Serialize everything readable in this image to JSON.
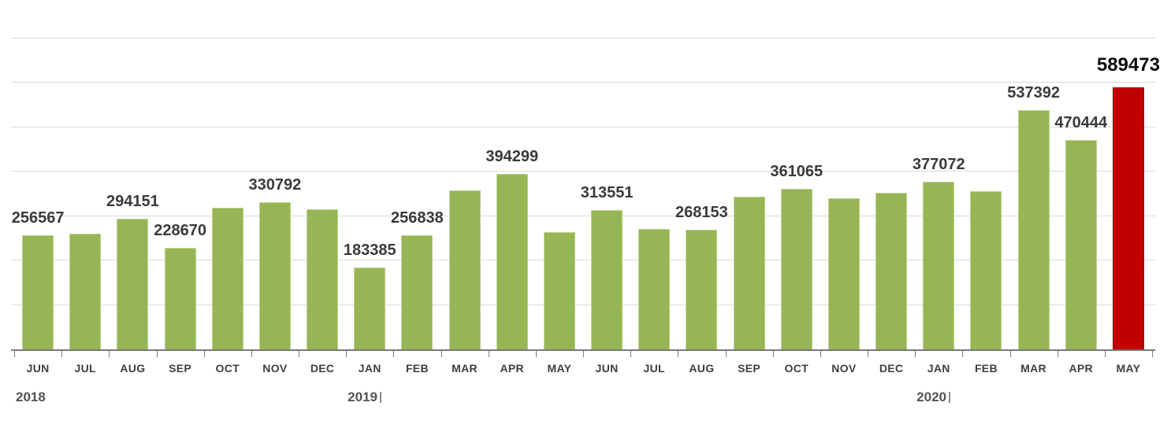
{
  "chart_data": {
    "type": "bar",
    "title": "",
    "xlabel": "",
    "ylabel": "",
    "ylim": [
      0,
      700000
    ],
    "grid_step": 100000,
    "grid": true,
    "legend": false,
    "colors": {
      "bar_green": "#96b655",
      "bar_green_border": "#bdd18f",
      "bar_red": "#c00000",
      "bar_red_border": "#8e0b0b",
      "gridline": "#d9d9d9",
      "axis": "#7a7a7a",
      "value_label_text": "#3a3a3a",
      "highlight_label_text": "#0d0d0d",
      "month_text": "#3f3f3f",
      "year_text": "#545454"
    },
    "bars": [
      {
        "month": "JUN",
        "value": 256567,
        "label": "256567",
        "highlight": false
      },
      {
        "month": "JUL",
        "value": 260000,
        "label": "",
        "highlight": false
      },
      {
        "month": "AUG",
        "value": 294151,
        "label": "294151",
        "highlight": false
      },
      {
        "month": "SEP",
        "value": 228670,
        "label": "228670",
        "highlight": false
      },
      {
        "month": "OCT",
        "value": 318000,
        "label": "",
        "highlight": false
      },
      {
        "month": "NOV",
        "value": 330792,
        "label": "330792",
        "highlight": false
      },
      {
        "month": "DEC",
        "value": 315000,
        "label": "",
        "highlight": false
      },
      {
        "month": "JAN",
        "value": 183385,
        "label": "183385",
        "highlight": false
      },
      {
        "month": "FEB",
        "value": 256838,
        "label": "256838",
        "highlight": false
      },
      {
        "month": "MAR",
        "value": 357000,
        "label": "",
        "highlight": false
      },
      {
        "month": "APR",
        "value": 394299,
        "label": "394299",
        "highlight": false
      },
      {
        "month": "MAY",
        "value": 264000,
        "label": "",
        "highlight": false
      },
      {
        "month": "JUN",
        "value": 313551,
        "label": "313551",
        "highlight": false
      },
      {
        "month": "JUL",
        "value": 270000,
        "label": "",
        "highlight": false
      },
      {
        "month": "AUG",
        "value": 268153,
        "label": "268153",
        "highlight": false
      },
      {
        "month": "SEP",
        "value": 343000,
        "label": "",
        "highlight": false
      },
      {
        "month": "OCT",
        "value": 361065,
        "label": "361065",
        "highlight": false
      },
      {
        "month": "NOV",
        "value": 340000,
        "label": "",
        "highlight": false
      },
      {
        "month": "DEC",
        "value": 352000,
        "label": "",
        "highlight": false
      },
      {
        "month": "JAN",
        "value": 377072,
        "label": "377072",
        "highlight": false
      },
      {
        "month": "FEB",
        "value": 356000,
        "label": "",
        "highlight": false
      },
      {
        "month": "MAR",
        "value": 537392,
        "label": "537392",
        "highlight": false
      },
      {
        "month": "APR",
        "value": 470444,
        "label": "470444",
        "highlight": false
      },
      {
        "month": "MAY",
        "value": 589473,
        "label": "589473",
        "highlight": true
      }
    ],
    "year_groups": [
      {
        "label": "2018",
        "start_index": 0,
        "tick_after": false
      },
      {
        "label": "2019",
        "start_index": 7,
        "tick_after": true
      },
      {
        "label": "2020",
        "start_index": 19,
        "tick_after": true
      }
    ]
  }
}
